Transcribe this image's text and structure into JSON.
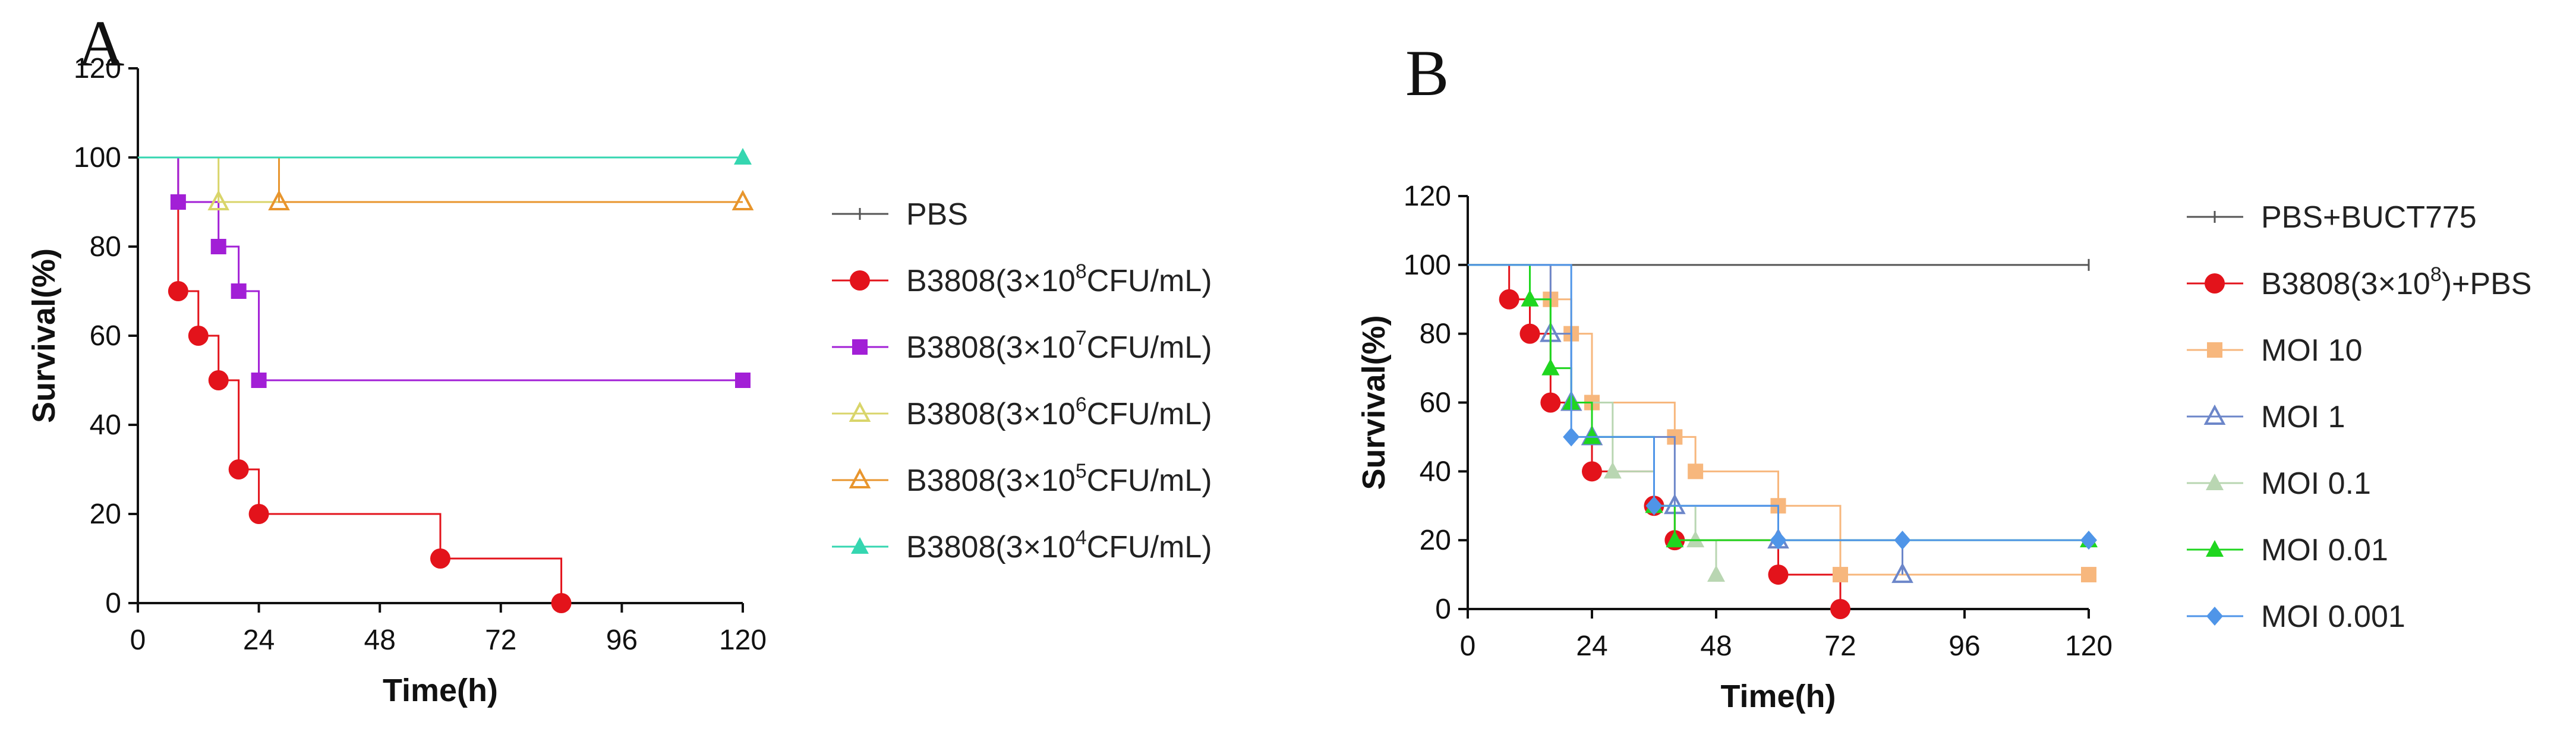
{
  "chart_data": [
    {
      "panel": "A",
      "type": "line",
      "subtype": "kaplan-meier step",
      "xlabel": "Time(h)",
      "ylabel": "Survival(%)",
      "xlim": [
        0,
        120
      ],
      "ylim": [
        0,
        120
      ],
      "xticks": [
        0,
        24,
        48,
        72,
        96,
        120
      ],
      "yticks": [
        0,
        20,
        40,
        60,
        80,
        100,
        120
      ],
      "legend_position": "right",
      "series": [
        {
          "name": "PBS",
          "label_parts": [
            "PBS"
          ],
          "color": "#555555",
          "marker": "tick",
          "x": [
            0,
            120
          ],
          "y": [
            100,
            100
          ]
        },
        {
          "name": "B3808(3×10^8CFU/mL)",
          "label_parts": [
            "B3808(3×10",
            "8",
            "CFU/mL)"
          ],
          "color": "#e3131b",
          "marker": "circle",
          "x": [
            0,
            8,
            12,
            16,
            20,
            24,
            60,
            84
          ],
          "y": [
            100,
            70,
            60,
            50,
            30,
            20,
            10,
            0
          ]
        },
        {
          "name": "B3808(3×10^7CFU/mL)",
          "label_parts": [
            "B3808(3×10",
            "7",
            "CFU/mL)"
          ],
          "color": "#a21fd6",
          "marker": "square",
          "x": [
            0,
            8,
            16,
            20,
            24,
            120
          ],
          "y": [
            100,
            90,
            80,
            70,
            50,
            50
          ]
        },
        {
          "name": "B3808(3×10^6CFU/mL)",
          "label_parts": [
            "B3808(3×10",
            "6",
            "CFU/mL)"
          ],
          "color": "#d9d56a",
          "marker": "triangle-open",
          "x": [
            0,
            16,
            120
          ],
          "y": [
            100,
            90,
            90
          ]
        },
        {
          "name": "B3808(3×10^5CFU/mL)",
          "label_parts": [
            "B3808(3×10",
            "5",
            "CFU/mL)"
          ],
          "color": "#e8952d",
          "marker": "triangle-open",
          "x": [
            0,
            28,
            120
          ],
          "y": [
            100,
            90,
            90
          ]
        },
        {
          "name": "B3808(3×10^4CFU/mL)",
          "label_parts": [
            "B3808(3×10",
            "4",
            "CFU/mL)"
          ],
          "color": "#35d6b0",
          "marker": "triangle",
          "x": [
            0,
            120
          ],
          "y": [
            100,
            100
          ]
        }
      ]
    },
    {
      "panel": "B",
      "type": "line",
      "subtype": "kaplan-meier step",
      "xlabel": "Time(h)",
      "ylabel": "Survival(%)",
      "xlim": [
        0,
        120
      ],
      "ylim": [
        0,
        120
      ],
      "xticks": [
        0,
        24,
        48,
        72,
        96,
        120
      ],
      "yticks": [
        0,
        20,
        40,
        60,
        80,
        100,
        120
      ],
      "legend_position": "right",
      "series": [
        {
          "name": "PBS+BUCT775",
          "label_parts": [
            "PBS+BUCT775"
          ],
          "color": "#555555",
          "marker": "tick",
          "x": [
            0,
            120
          ],
          "y": [
            100,
            100
          ]
        },
        {
          "name": "B3808(3×10^8)+PBS",
          "label_parts": [
            "B3808(3×10",
            "8",
            ")+PBS"
          ],
          "color": "#e3131b",
          "marker": "circle",
          "x": [
            0,
            8,
            12,
            16,
            24,
            36,
            40,
            60,
            72
          ],
          "y": [
            100,
            90,
            80,
            60,
            40,
            30,
            20,
            10,
            0
          ]
        },
        {
          "name": "MOI 10",
          "label_parts": [
            "MOI 10"
          ],
          "color": "#f7b77d",
          "marker": "square",
          "x": [
            0,
            16,
            20,
            24,
            40,
            44,
            60,
            72,
            120
          ],
          "y": [
            100,
            90,
            80,
            60,
            50,
            40,
            30,
            10,
            10
          ]
        },
        {
          "name": "MOI 1",
          "label_parts": [
            "MOI 1"
          ],
          "color": "#6c86c9",
          "marker": "triangle-open",
          "x": [
            0,
            16,
            20,
            24,
            40,
            60,
            84
          ],
          "y": [
            100,
            80,
            60,
            50,
            30,
            20,
            10
          ]
        },
        {
          "name": "MOI 0.1",
          "label_parts": [
            "MOI 0.1"
          ],
          "color": "#b9d6b2",
          "marker": "triangle",
          "x": [
            0,
            12,
            16,
            20,
            28,
            36,
            44,
            48
          ],
          "y": [
            100,
            90,
            70,
            60,
            40,
            30,
            20,
            10
          ]
        },
        {
          "name": "MOI 0.01",
          "label_parts": [
            "MOI 0.01"
          ],
          "color": "#1fd61f",
          "marker": "triangle",
          "x": [
            0,
            12,
            16,
            20,
            24,
            36,
            40,
            120
          ],
          "y": [
            100,
            90,
            70,
            60,
            50,
            30,
            20,
            20
          ]
        },
        {
          "name": "MOI 0.001",
          "label_parts": [
            "MOI 0.001"
          ],
          "color": "#4f95e8",
          "marker": "diamond",
          "x": [
            0,
            20,
            36,
            60,
            84,
            120
          ],
          "y": [
            100,
            50,
            30,
            20,
            20,
            20
          ]
        }
      ]
    }
  ]
}
